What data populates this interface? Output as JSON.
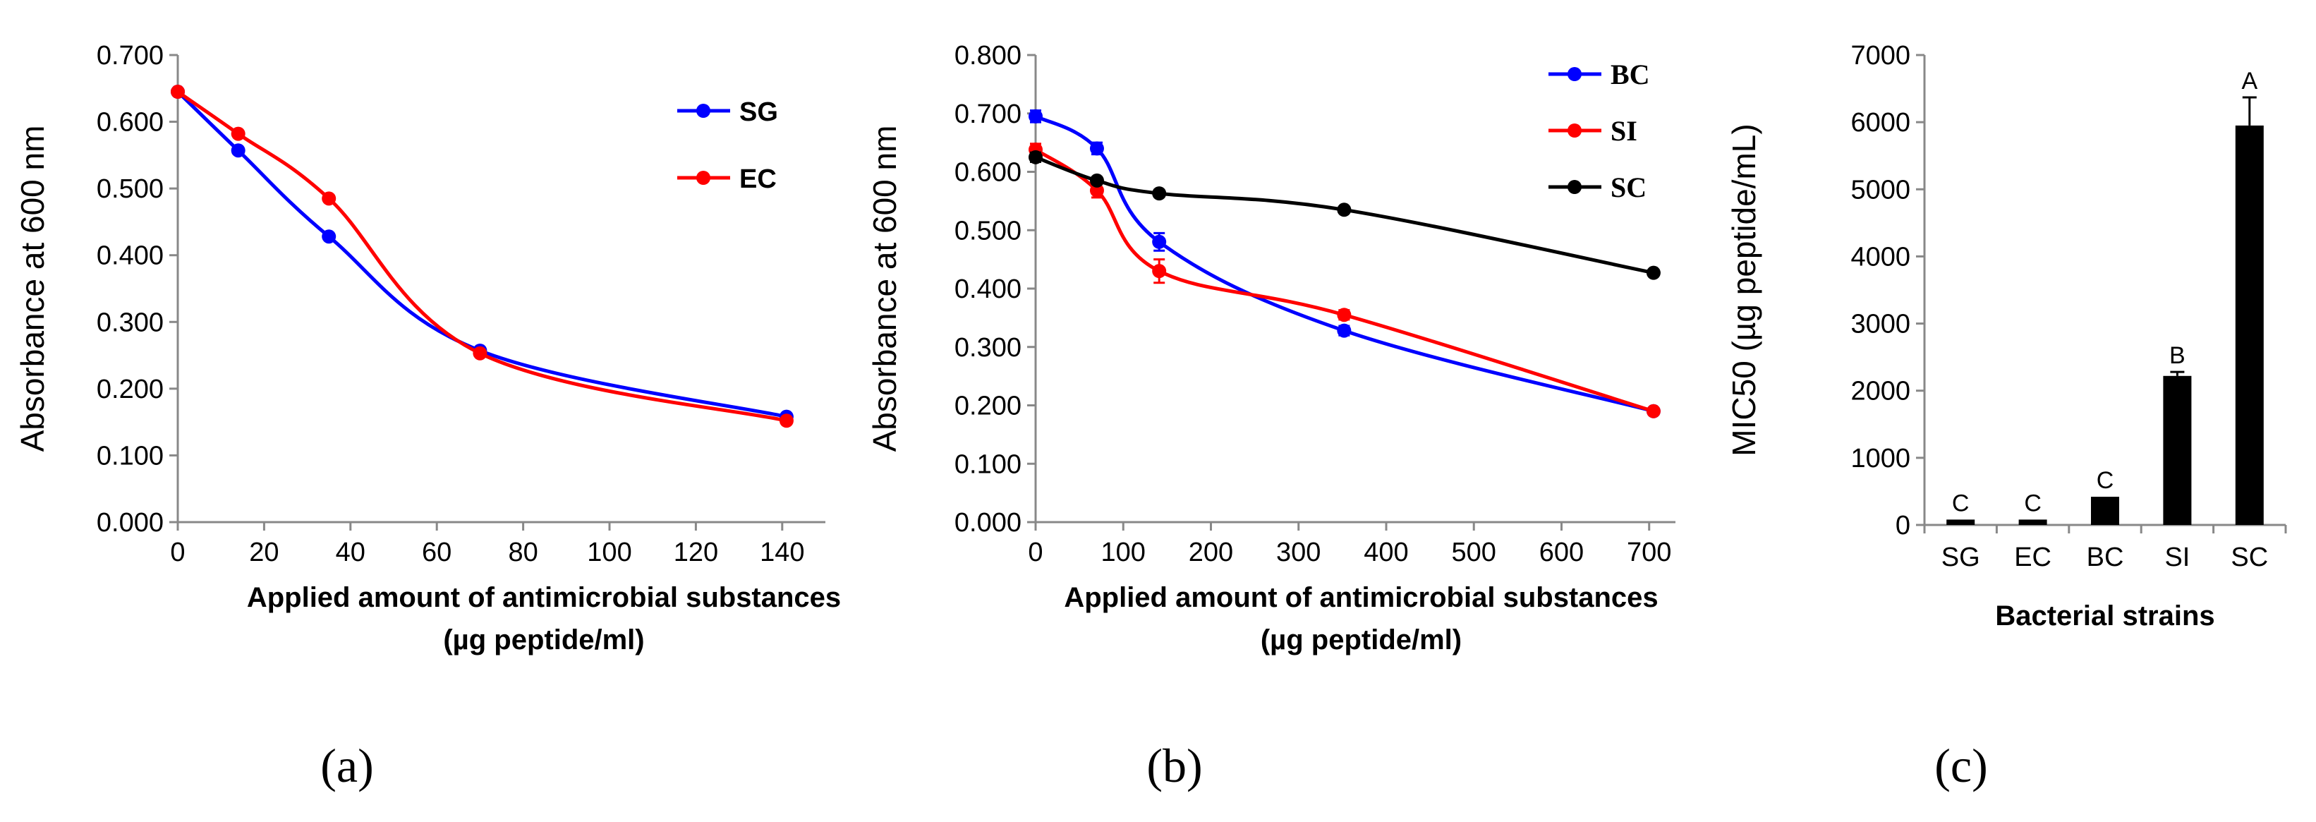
{
  "chart_data": [
    {
      "type": "line",
      "ylabel": "Absorbance at 600 nm",
      "xlabel_line1": "Applied amount of antimicrobial substances",
      "xlabel_line2": "(µg peptide/ml)",
      "xlim": [
        0,
        150
      ],
      "ylim": [
        0,
        0.7
      ],
      "xticks": [
        0,
        20,
        40,
        60,
        80,
        100,
        120,
        140
      ],
      "yticks": [
        "0.000",
        "0.100",
        "0.200",
        "0.300",
        "0.400",
        "0.500",
        "0.600",
        "0.700"
      ],
      "legend_position": "top-right",
      "series": [
        {
          "name": "SG",
          "color": "#0000ff",
          "x": [
            0,
            14,
            35,
            70,
            141
          ],
          "y": [
            0.645,
            0.557,
            0.428,
            0.257,
            0.158
          ],
          "err": [
            0,
            0,
            0,
            0,
            0
          ]
        },
        {
          "name": "EC",
          "color": "#ff0000",
          "x": [
            0,
            14,
            35,
            70,
            141
          ],
          "y": [
            0.645,
            0.582,
            0.485,
            0.253,
            0.152
          ],
          "err": [
            0,
            0,
            0,
            0,
            0
          ]
        }
      ],
      "panel_label": "(a)"
    },
    {
      "type": "line",
      "ylabel": "Absorbance at 600 nm",
      "xlabel_line1": "Applied amount of antimicrobial substances",
      "xlabel_line2": "(µg peptide/ml)",
      "xlim": [
        0,
        730
      ],
      "ylim": [
        0,
        0.8
      ],
      "xticks": [
        0,
        100,
        200,
        300,
        400,
        500,
        600,
        700
      ],
      "yticks": [
        "0.000",
        "0.100",
        "0.200",
        "0.300",
        "0.400",
        "0.500",
        "0.600",
        "0.700",
        "0.800"
      ],
      "legend_position": "top-right",
      "series": [
        {
          "name": "BC",
          "color": "#0000ff",
          "x": [
            0,
            70,
            141,
            352,
            705
          ],
          "y": [
            0.695,
            0.64,
            0.48,
            0.328,
            0.19
          ],
          "err": [
            0.01,
            0.01,
            0.015,
            0.008,
            0.005
          ]
        },
        {
          "name": "SI",
          "color": "#ff0000",
          "x": [
            0,
            70,
            141,
            352,
            705
          ],
          "y": [
            0.638,
            0.568,
            0.43,
            0.355,
            0.19
          ],
          "err": [
            0.01,
            0.012,
            0.02,
            0.008,
            0.005
          ]
        },
        {
          "name": "SC",
          "color": "#000000",
          "x": [
            0,
            70,
            141,
            352,
            705
          ],
          "y": [
            0.625,
            0.585,
            0.563,
            0.535,
            0.427
          ],
          "err": [
            0.008,
            0.006,
            0.006,
            0.005,
            0.005
          ]
        }
      ],
      "panel_label": "(b)"
    },
    {
      "type": "bar",
      "ylabel": "MIC50  (µg peptide/mL)",
      "xlabel": "Bacterial strains",
      "ylim": [
        0,
        7000
      ],
      "yticks": [
        "0",
        "1000",
        "2000",
        "3000",
        "4000",
        "5000",
        "6000",
        "7000"
      ],
      "categories": [
        "SG",
        "EC",
        "BC",
        "SI",
        "SC"
      ],
      "values": [
        80,
        80,
        420,
        2220,
        5950
      ],
      "errors": [
        0,
        0,
        0,
        60,
        420
      ],
      "significance": [
        "C",
        "C",
        "C",
        "B",
        "A"
      ],
      "color": "#000000",
      "panel_label": "(c)"
    }
  ]
}
